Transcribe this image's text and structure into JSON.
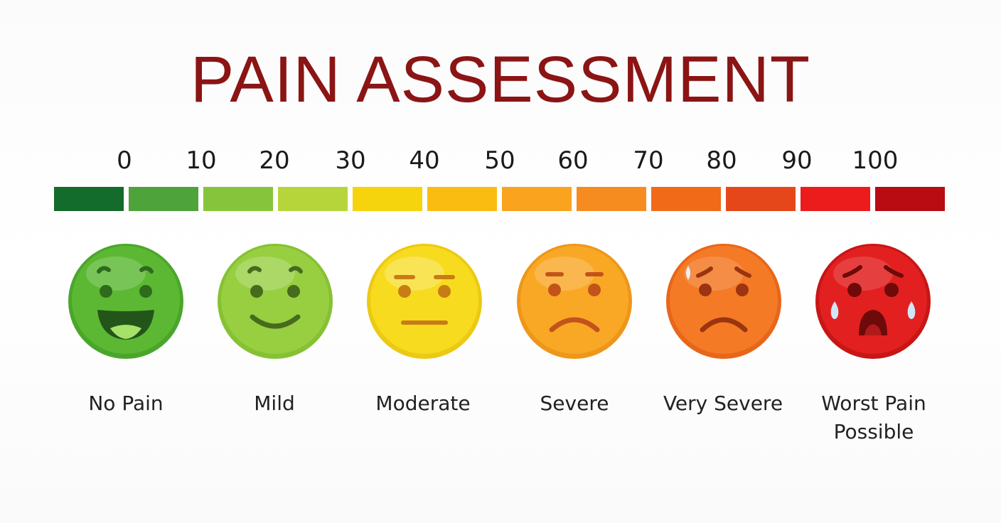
{
  "title": "PAIN ASSESSMENT",
  "scale_ticks": [
    "0",
    "10",
    "20",
    "30",
    "40",
    "50",
    "60",
    "70",
    "80",
    "90",
    "100"
  ],
  "segment_colors": [
    "#136b2c",
    "#4ea33a",
    "#86c53b",
    "#b5d53a",
    "#f6d40d",
    "#fbbc12",
    "#f9a31e",
    "#f68c20",
    "#f16a18",
    "#e5471a",
    "#ec1c1c",
    "#b80b12"
  ],
  "faces": [
    {
      "label_lines": [
        "No Pain"
      ],
      "color": "#5cb833",
      "icon": "laughing-face-icon"
    },
    {
      "label_lines": [
        "Mild"
      ],
      "color": "#97cf40",
      "icon": "smiling-face-icon"
    },
    {
      "label_lines": [
        "Moderate"
      ],
      "color": "#f7db1e",
      "icon": "neutral-face-icon"
    },
    {
      "label_lines": [
        "Severe"
      ],
      "color": "#f9a826",
      "icon": "sad-face-icon"
    },
    {
      "label_lines": [
        "Very Severe"
      ],
      "color": "#f57a26",
      "icon": "worried-sweat-face-icon"
    },
    {
      "label_lines": [
        "Worst Pain",
        "Possible"
      ],
      "color": "#e22020",
      "icon": "crying-face-icon"
    }
  ]
}
